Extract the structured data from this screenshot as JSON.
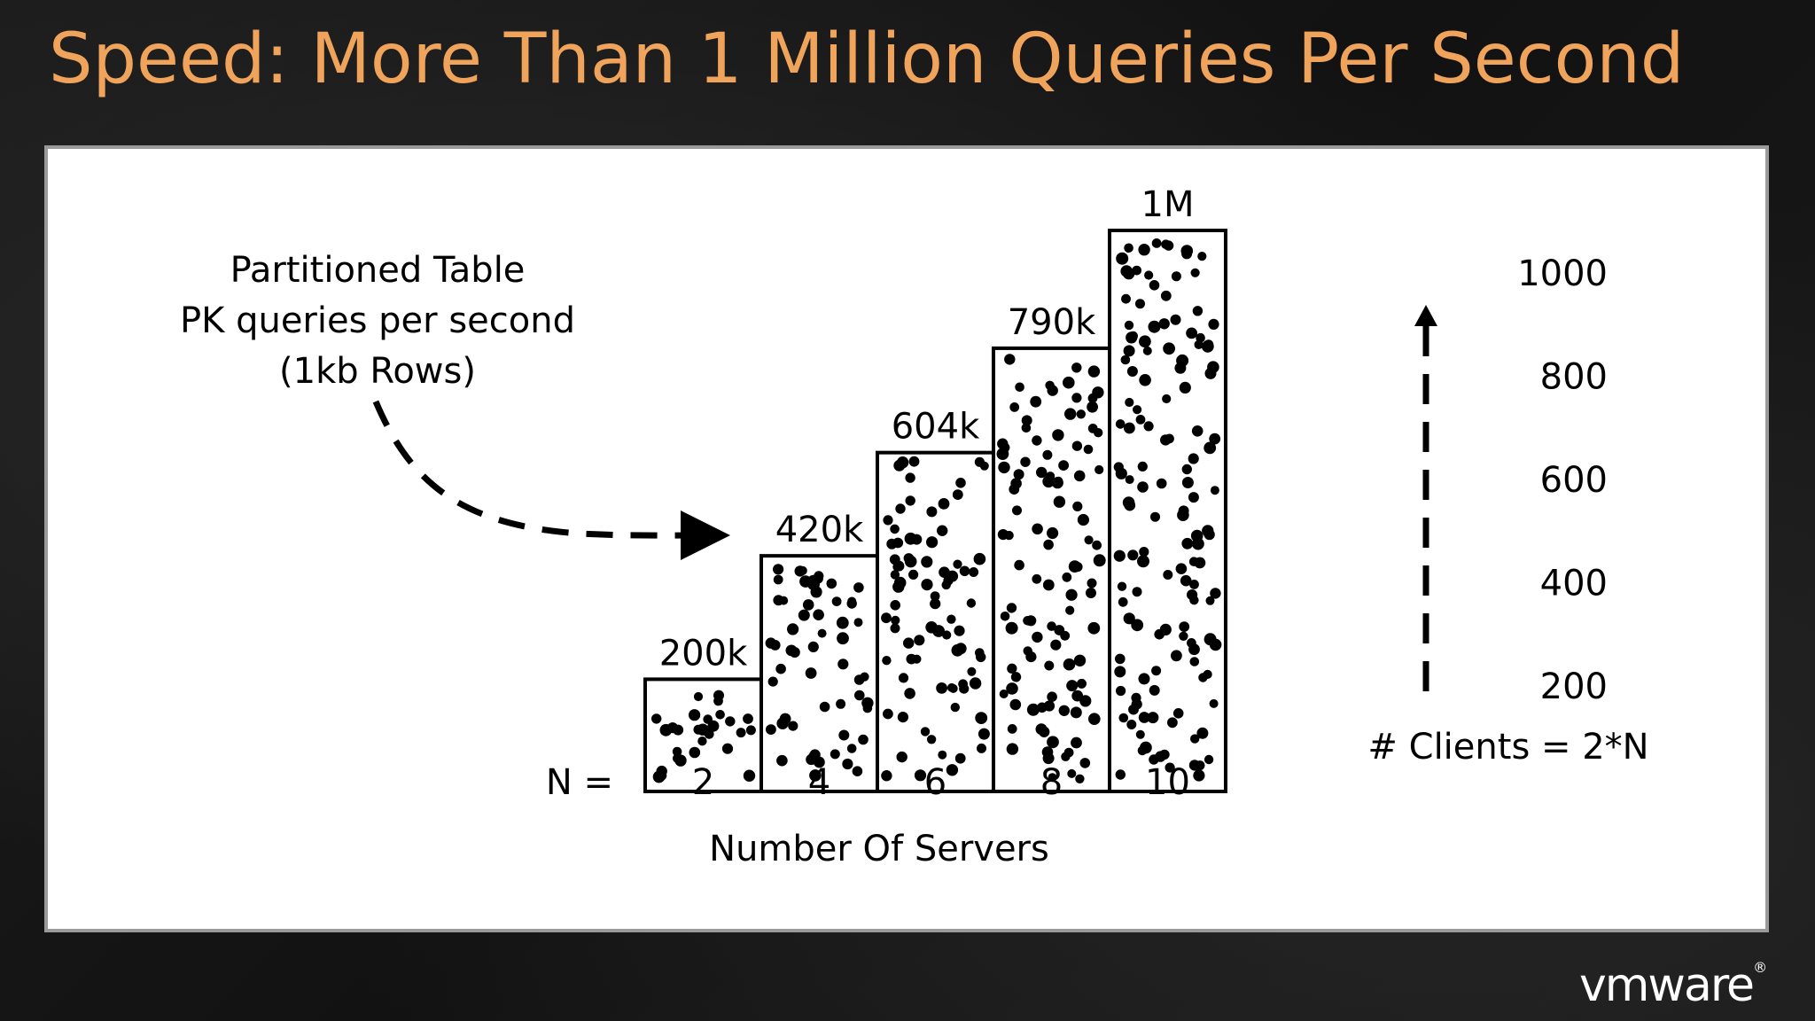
{
  "slide": {
    "title": "Speed: More Than 1 Million Queries Per Second",
    "logo_text": "vmware",
    "logo_mark": "®"
  },
  "chart_data": {
    "type": "bar",
    "annotation_lines": [
      "Partitioned Table",
      "PK queries per second",
      "(1kb Rows)"
    ],
    "x_prefix": "N =",
    "categories": [
      "2",
      "4",
      "6",
      "8",
      "10"
    ],
    "values": [
      200000,
      420000,
      604000,
      790000,
      1000000
    ],
    "data_labels": [
      "200k",
      "420k",
      "604k",
      "790k",
      "1M"
    ],
    "xlabel": "Number Of Servers",
    "ylim": [
      0,
      1000000
    ],
    "grid": false,
    "secondary_axis": {
      "ticks": [
        "1000",
        "800",
        "600",
        "400",
        "200"
      ],
      "caption": "# Clients = 2*N"
    },
    "bar_fill": "#ffffff",
    "bar_stroke": "#000000",
    "dot_color": "#000000"
  },
  "colors": {
    "title": "#f0a35a",
    "panel": "#ffffff",
    "background": "#141414"
  }
}
